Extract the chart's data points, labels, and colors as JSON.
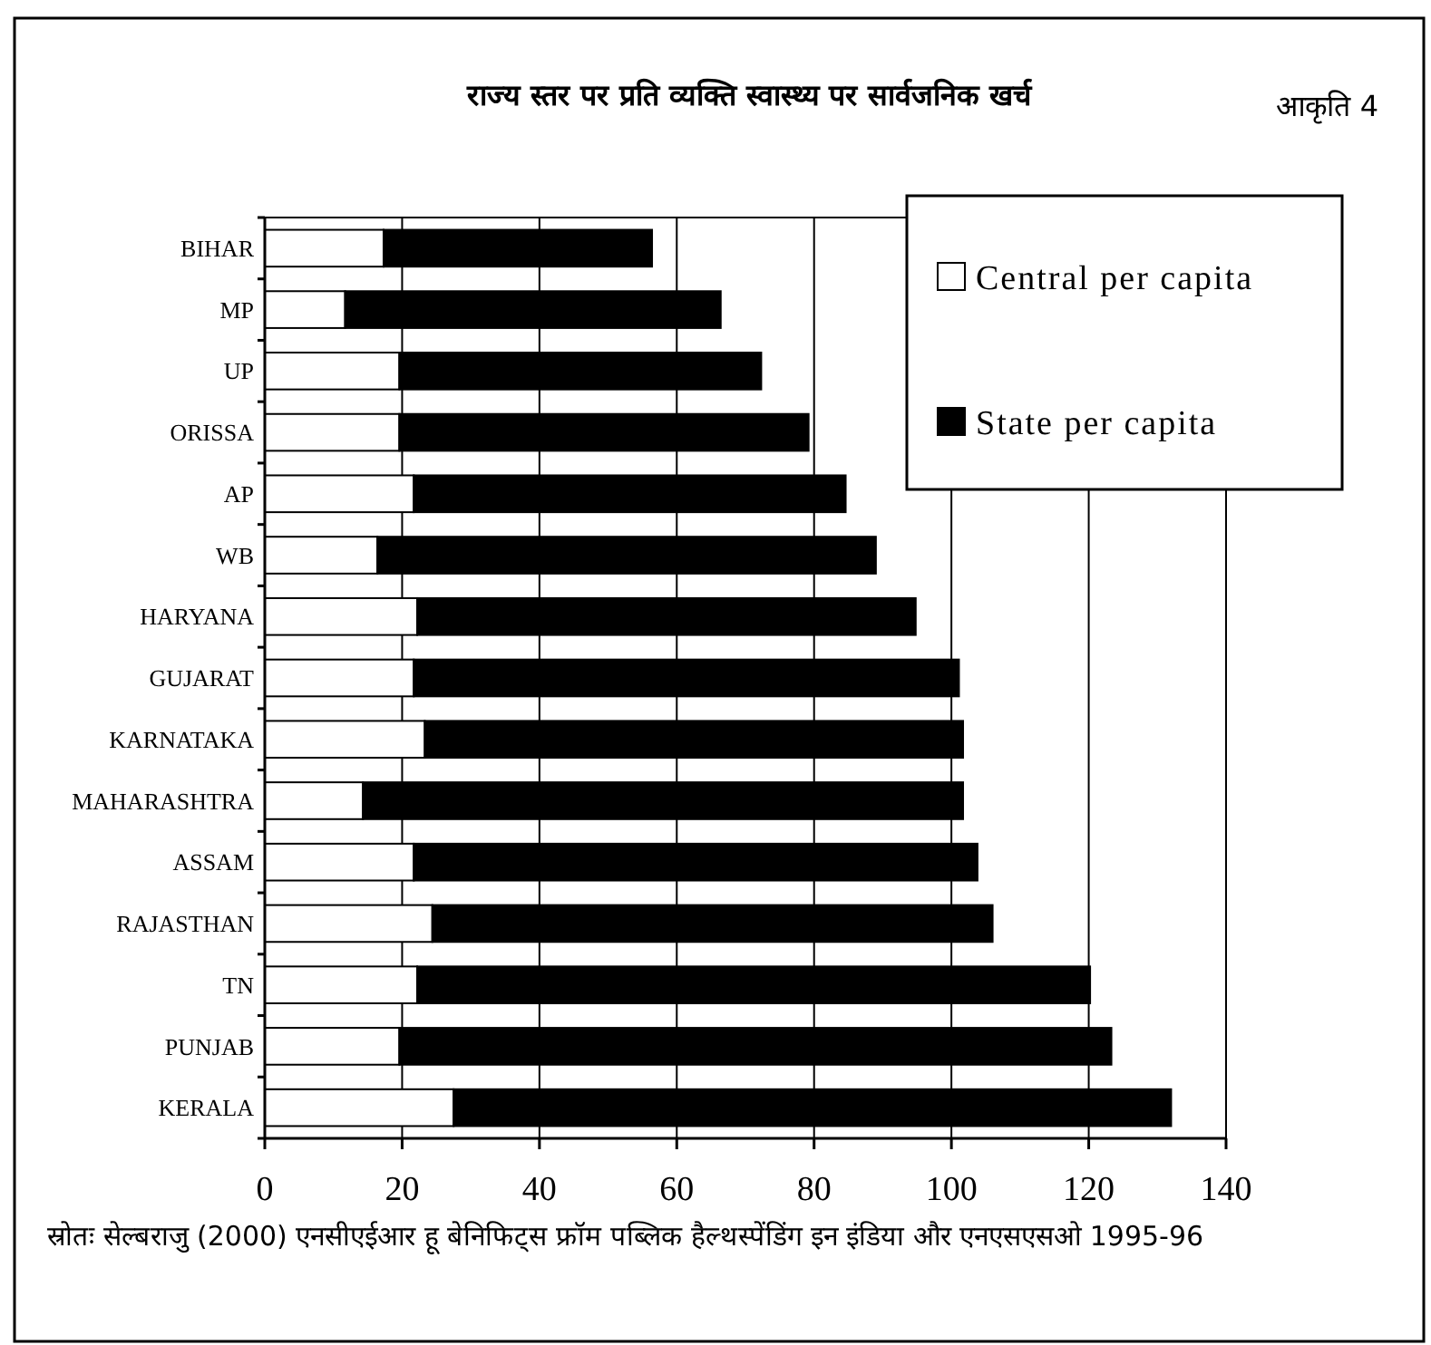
{
  "chart_data": {
    "type": "bar",
    "orientation": "horizontal",
    "stacked": true,
    "title": "राज्य स्तर पर प्रति व्यक्ति स्वास्थ्य पर सार्वजनिक खर्च",
    "annotations": [
      "आकृति 4",
      "स्रोतः सेल्बराजु (2000) एनसीएईआर हू बेनिफिट्स फ्रॉम पब्लिक हैल्थस्पेंडिंग इन इंडिया और एनएसएसओ 1995-96"
    ],
    "categories": [
      "BIHAR",
      "MP",
      "UP",
      "ORISSA",
      "AP",
      "WB",
      "HARYANA",
      "GUJARAT",
      "KARNATAKA",
      "MAHARASHTRA",
      "ASSAM",
      "RAJASTHAN",
      "TN",
      "PUNJAB",
      "KERALA"
    ],
    "series": [
      {
        "name": "Central per capita",
        "color": "#ffffff",
        "values": [
          17.3,
          11.7,
          19.6,
          19.6,
          21.7,
          16.4,
          22.2,
          21.7,
          23.3,
          14.3,
          21.7,
          24.4,
          22.2,
          19.6,
          27.5
        ]
      },
      {
        "name": "State per capita",
        "color": "#000000",
        "values": [
          39.1,
          54.7,
          52.7,
          59.6,
          62.9,
          72.6,
          72.6,
          79.4,
          78.4,
          87.4,
          82.1,
          81.6,
          98,
          103.7,
          104.5
        ]
      }
    ],
    "xlim": [
      0,
      140
    ],
    "xticks": [
      0,
      20,
      40,
      60,
      80,
      100,
      120,
      140
    ],
    "grid": "x",
    "legend": "top right"
  }
}
